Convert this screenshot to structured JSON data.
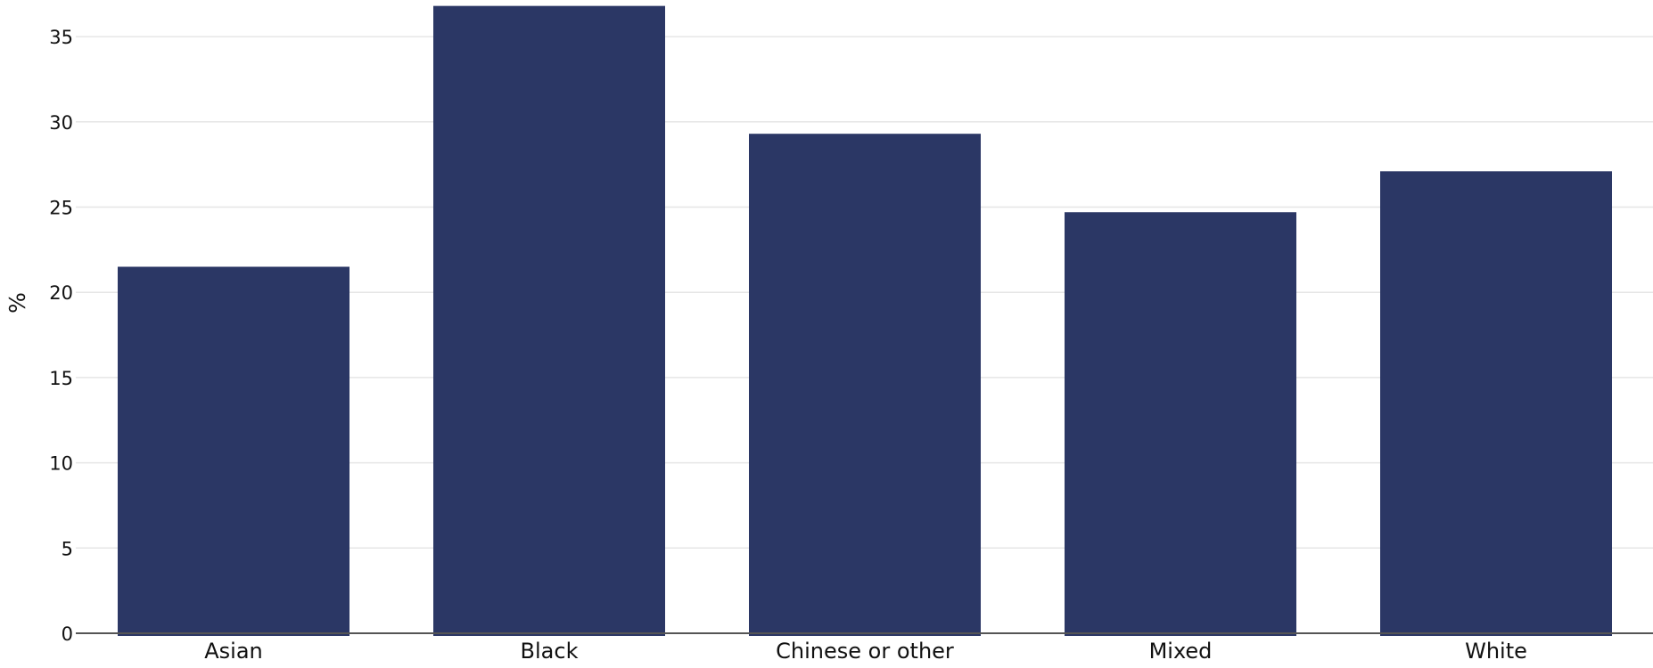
{
  "chart_data": {
    "type": "bar",
    "title": "",
    "xlabel": "",
    "ylabel": "%",
    "categories": [
      "Asian",
      "Black",
      "Chinese or other",
      "Mixed",
      "White"
    ],
    "values": [
      21.5,
      36.8,
      29.3,
      24.7,
      27.1
    ],
    "ylim": [
      0,
      37
    ],
    "yticks": [
      0,
      5,
      10,
      15,
      20,
      25,
      30,
      35
    ],
    "grid": true,
    "legend": "none",
    "bar_color": "#2b3765"
  }
}
